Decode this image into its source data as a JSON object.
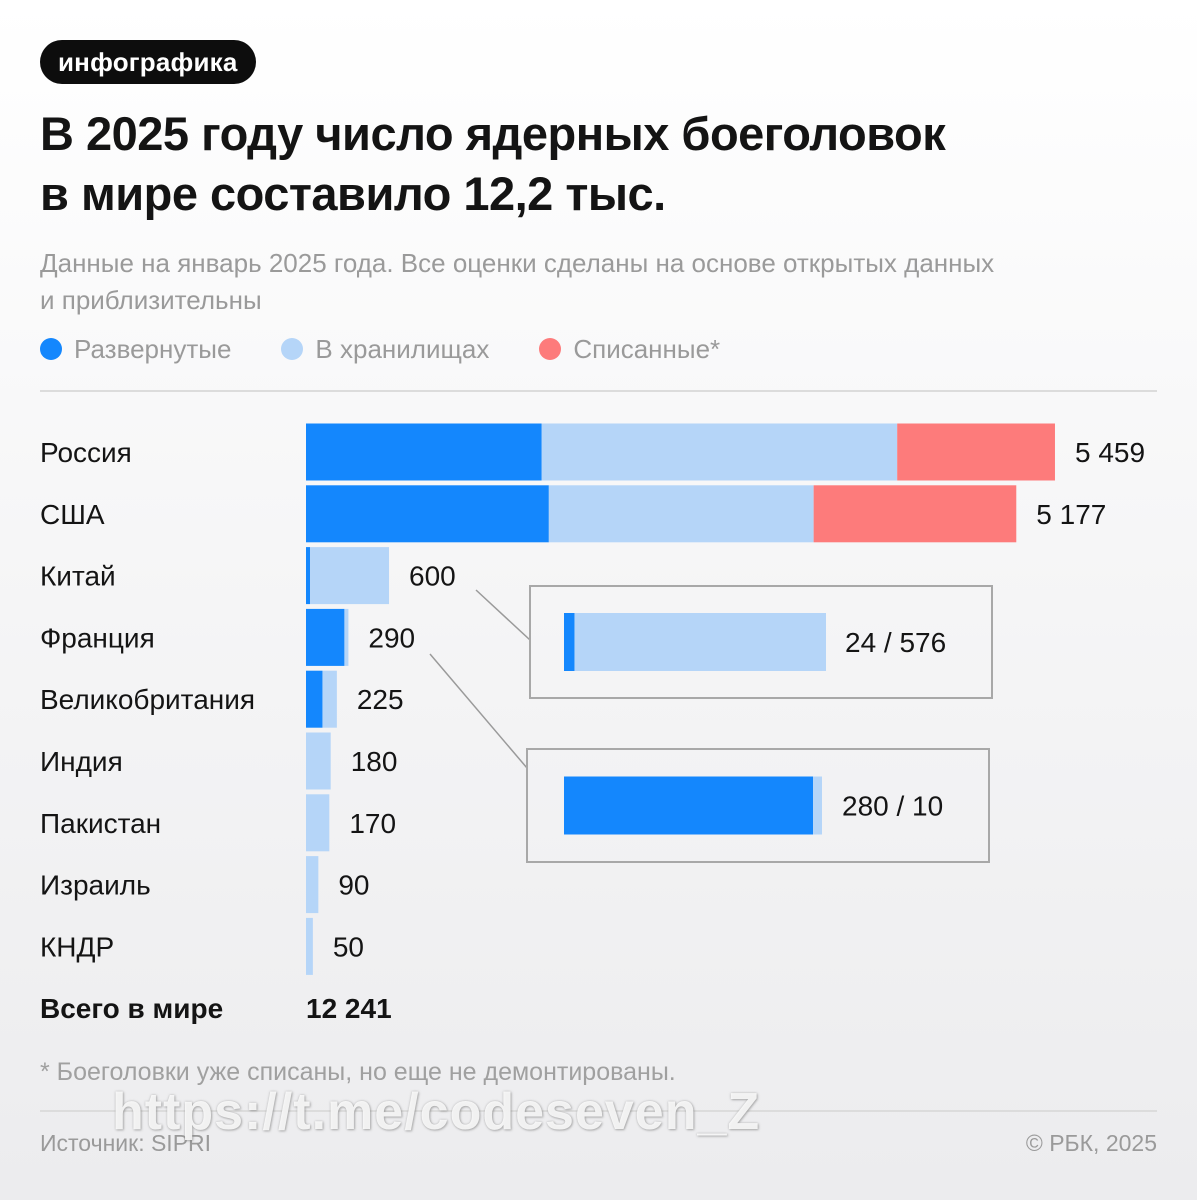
{
  "badge": "инфографика",
  "title_line1": "В 2025 году число ядерных боеголовок",
  "title_line2": "в мире составило 12,2 тыс.",
  "subtitle_line1": "Данные на январь 2025 года. Все оценки сделаны на основе открытых данных",
  "subtitle_line2": "и приблизительны",
  "legend": [
    {
      "label": "Развернутые",
      "color": "#1487fd"
    },
    {
      "label": "В хранилищах",
      "color": "#b5d5f8"
    },
    {
      "label": "Списанные*",
      "color": "#fd7b7b"
    }
  ],
  "chart_data": {
    "type": "bar",
    "orientation": "horizontal",
    "stacked": true,
    "categories": [
      "Россия",
      "США",
      "Китай",
      "Франция",
      "Великобритания",
      "Индия",
      "Пакистан",
      "Израиль",
      "КНДР"
    ],
    "series": [
      {
        "name": "Развернутые",
        "color": "#1487fd",
        "values": [
          1718,
          1770,
          24,
          280,
          120,
          0,
          0,
          0,
          0
        ]
      },
      {
        "name": "В хранилищах",
        "color": "#b5d5f8",
        "values": [
          2591,
          1930,
          576,
          10,
          105,
          180,
          170,
          90,
          50
        ]
      },
      {
        "name": "Списанные*",
        "color": "#fd7b7b",
        "values": [
          1150,
          1477,
          0,
          0,
          0,
          0,
          0,
          0,
          0
        ]
      }
    ],
    "totals": [
      "5 459",
      "5 177",
      "600",
      "290",
      "225",
      "180",
      "170",
      "90",
      "50"
    ],
    "total_row": {
      "label": "Всего в мире",
      "value": "12 241"
    },
    "callouts": [
      {
        "category": "Китай",
        "deployed": 24,
        "stored": 576,
        "label": "24 / 576"
      },
      {
        "category": "Франция",
        "deployed": 280,
        "stored": 10,
        "label": "280 / 10"
      }
    ]
  },
  "footnote": "* Боеголовки уже списаны, но еще не демонтированы.",
  "source": "Источник: SIPRI",
  "copyright": "© РБК, 2025",
  "watermark": "https://t.me/codeseven_Z"
}
